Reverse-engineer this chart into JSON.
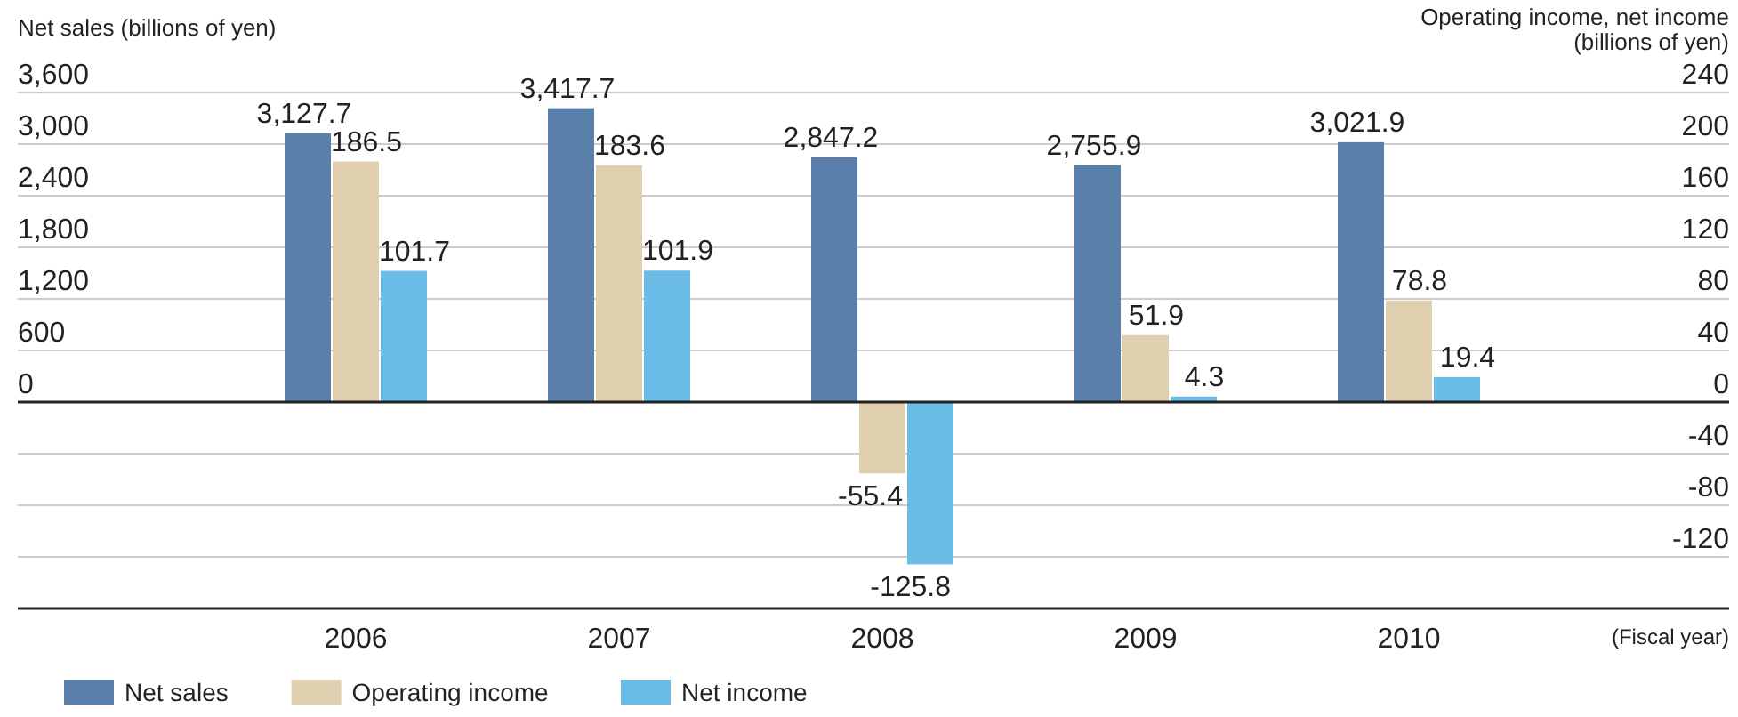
{
  "chart_data": {
    "type": "bar",
    "categories": [
      "2006",
      "2007",
      "2008",
      "2009",
      "2010"
    ],
    "ylabel": "Net sales (billions of yen)",
    "y2label": "Operating income, net income\n(billions of yen)",
    "xlabel": "(Fiscal year)",
    "ylim": [
      -2400,
      3600
    ],
    "yticks": [
      {
        "value": 0,
        "label": "0"
      },
      {
        "value": 600,
        "label": "600"
      },
      {
        "value": 1200,
        "label": "1,200"
      },
      {
        "value": 1800,
        "label": "1,800"
      },
      {
        "value": 2400,
        "label": "2,400"
      },
      {
        "value": 3000,
        "label": "3,000"
      },
      {
        "value": 3600,
        "label": "3,600"
      }
    ],
    "y2lim": [
      -160,
      240
    ],
    "y2ticks": [
      -120,
      -80,
      -40,
      0,
      40,
      80,
      120,
      160,
      200,
      240
    ],
    "grid": true,
    "legend": "bottom left",
    "series": [
      {
        "name": "Net sales",
        "color": "#5a7fab",
        "values": [
          3127.7,
          3417.7,
          2847.2,
          2755.9,
          3021.9
        ],
        "value_labels": [
          "3,127.7",
          "3,417.7",
          "2,847.2",
          "2,755.9",
          "3,021.9"
        ]
      },
      {
        "name": "Operating income",
        "color": "#dfcfae",
        "axis": "y2",
        "values": [
          186.5,
          183.6,
          -55.4,
          51.9,
          78.8
        ],
        "value_labels": [
          "186.5",
          "183.6",
          "-55.4",
          "51.9",
          "78.8"
        ]
      },
      {
        "name": "Net income",
        "color": "#6bbde8",
        "axis": "y2",
        "values": [
          101.7,
          101.9,
          -125.8,
          4.3,
          19.4
        ],
        "value_labels": [
          "101.7",
          "101.9",
          "-125.8",
          "4.3",
          "19.4"
        ]
      }
    ]
  }
}
